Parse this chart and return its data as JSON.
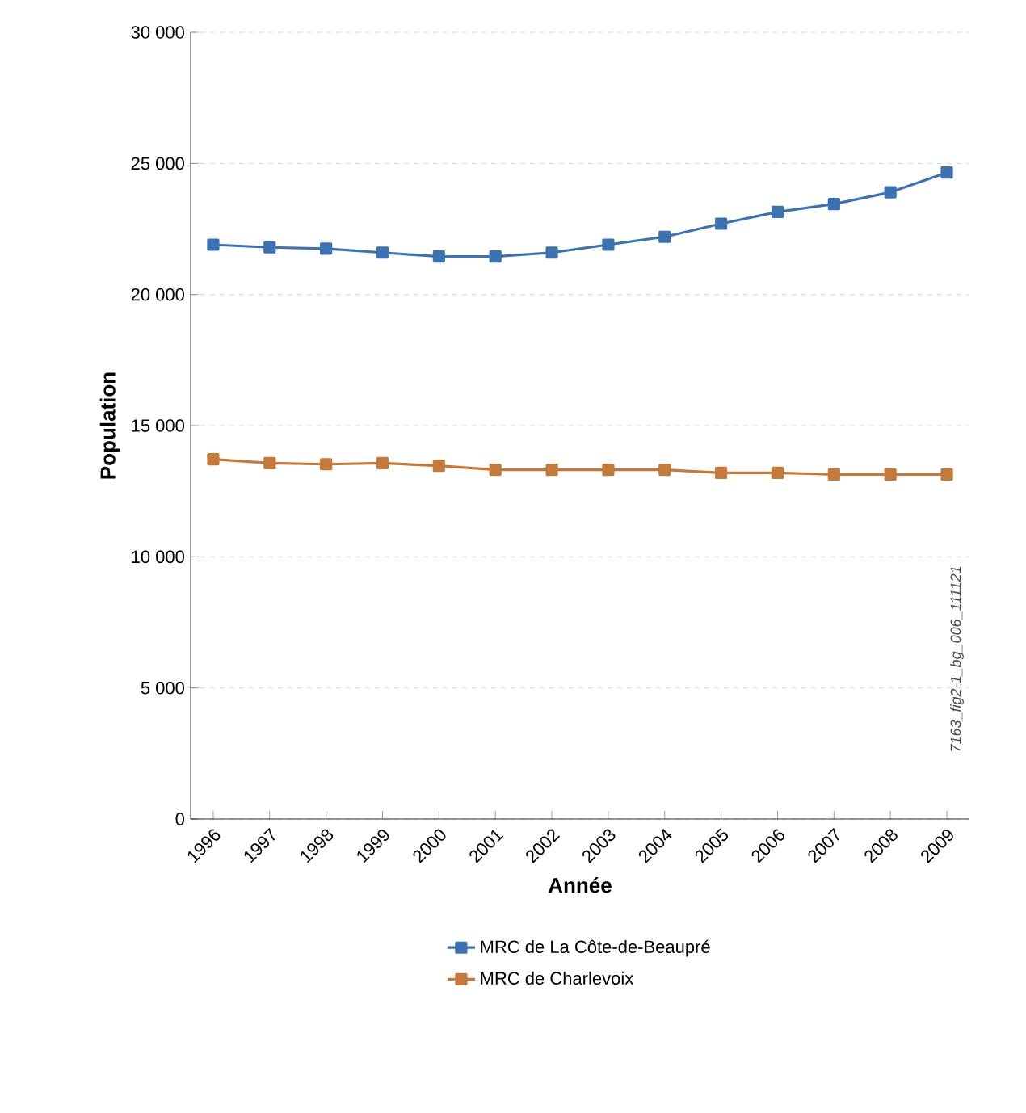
{
  "chart_data": {
    "type": "line",
    "xlabel": "Année",
    "ylabel": "Population",
    "categories": [
      "1996",
      "1997",
      "1998",
      "1999",
      "2000",
      "2001",
      "2002",
      "2003",
      "2004",
      "2005",
      "2006",
      "2007",
      "2008",
      "2009"
    ],
    "series": [
      {
        "name": "MRC de La Côte-de-Beaupré",
        "color": "#3d72b0",
        "values": [
          21900,
          21800,
          21750,
          21600,
          21450,
          21450,
          21600,
          21900,
          22200,
          22700,
          23150,
          23450,
          23900,
          24650
        ]
      },
      {
        "name": "MRC de Charlevoix",
        "color": "#c47a3c",
        "values": [
          13720,
          13570,
          13530,
          13570,
          13470,
          13320,
          13320,
          13320,
          13320,
          13200,
          13200,
          13140,
          13140,
          13140
        ]
      }
    ],
    "ylim": [
      0,
      30000
    ],
    "yticks": [
      {
        "value": 0,
        "label": "0"
      },
      {
        "value": 5000,
        "label": "5 000"
      },
      {
        "value": 10000,
        "label": "10 000"
      },
      {
        "value": 15000,
        "label": "15 000"
      },
      {
        "value": 20000,
        "label": "20 000"
      },
      {
        "value": 25000,
        "label": "25 000"
      },
      {
        "value": 30000,
        "label": "30 000"
      }
    ],
    "grid": "y",
    "legend": "bottom",
    "marker": "square",
    "line_style": "solid",
    "annotations": [
      "7163_fig2-1_bg_006_111121"
    ]
  }
}
